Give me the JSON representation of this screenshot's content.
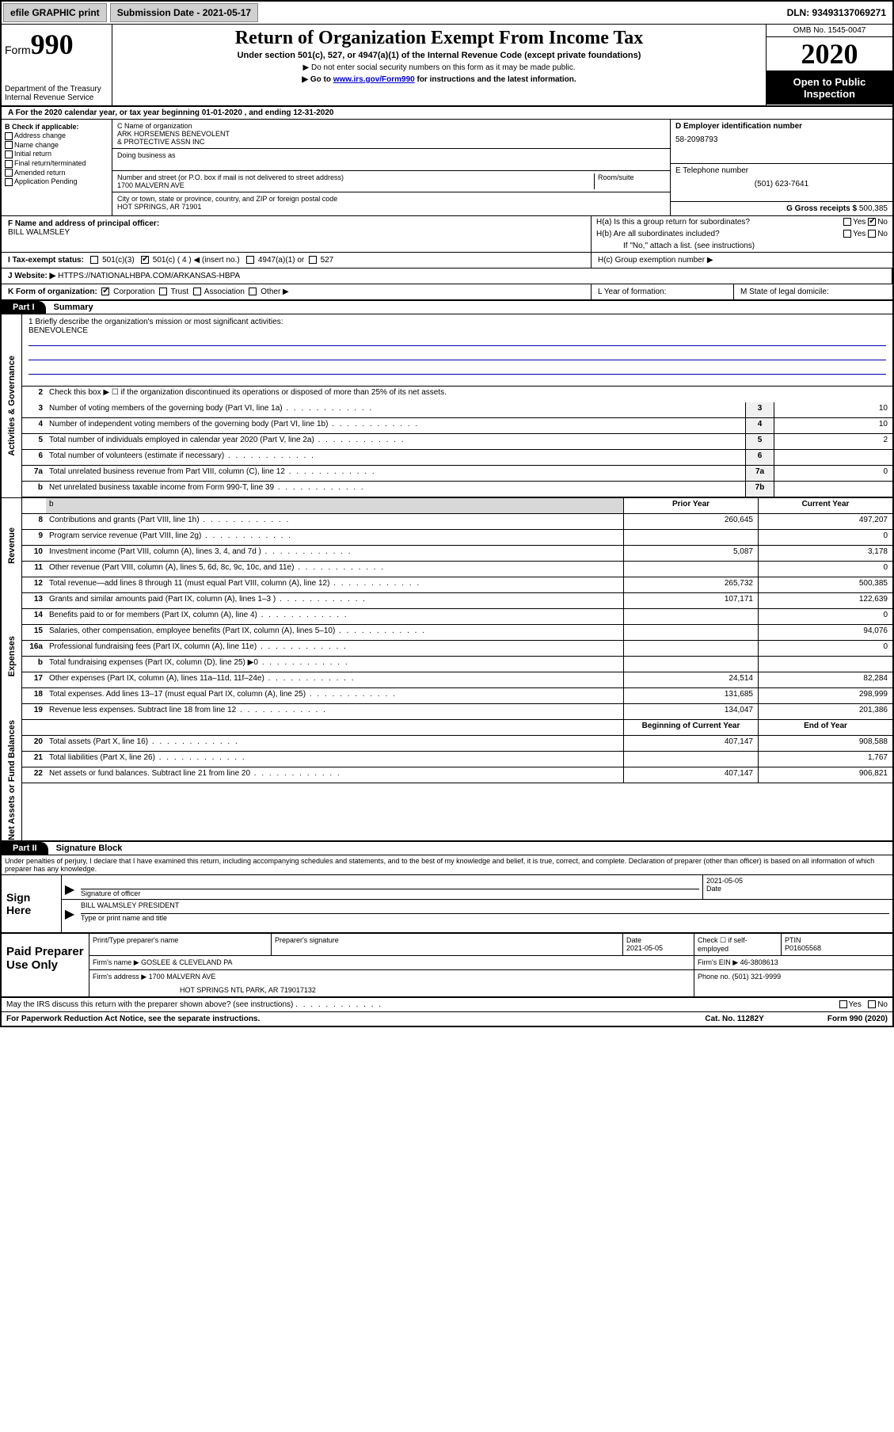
{
  "topbar": {
    "efile": "efile GRAPHIC print",
    "submission_label": "Submission Date - 2021-05-17",
    "dln": "DLN: 93493137069271"
  },
  "header": {
    "form_prefix": "Form",
    "form_number": "990",
    "title": "Return of Organization Exempt From Income Tax",
    "subtitle": "Under section 501(c), 527, or 4947(a)(1) of the Internal Revenue Code (except private foundations)",
    "note1": "▶ Do not enter social security numbers on this form as it may be made public.",
    "note2_prefix": "▶ Go to ",
    "note2_link": "www.irs.gov/Form990",
    "note2_suffix": " for instructions and the latest information.",
    "dept": "Department of the Treasury\nInternal Revenue Service",
    "omb": "OMB No. 1545-0047",
    "year": "2020",
    "open_public": "Open to Public Inspection"
  },
  "line_a": "A For the 2020 calendar year, or tax year beginning 01-01-2020    , and ending 12-31-2020",
  "section_b": {
    "label": "B Check if applicable:",
    "items": [
      "Address change",
      "Name change",
      "Initial return",
      "Final return/terminated",
      "Amended return",
      "Application Pending"
    ]
  },
  "section_c": {
    "name_label": "C Name of organization",
    "name": "ARK HORSEMENS BENEVOLENT\n& PROTECTIVE ASSN INC",
    "dba_label": "Doing business as",
    "street_label": "Number and street (or P.O. box if mail is not delivered to street address)",
    "room_label": "Room/suite",
    "street": "1700 MALVERN AVE",
    "city_label": "City or town, state or province, country, and ZIP or foreign postal code",
    "city": "HOT SPRINGS, AR  71901"
  },
  "section_d": {
    "label": "D Employer identification number",
    "value": "58-2098793"
  },
  "section_e": {
    "label": "E Telephone number",
    "value": "(501) 623-7641"
  },
  "section_g": {
    "label": "G Gross receipts $",
    "value": "500,385"
  },
  "section_f": {
    "label": "F  Name and address of principal officer:",
    "value": "BILL WALMSLEY"
  },
  "section_h": {
    "a": "H(a)  Is this a group return for subordinates?",
    "a_yes": "Yes",
    "a_no": "No",
    "b": "H(b)  Are all subordinates included?",
    "b_yes": "Yes",
    "b_no": "No",
    "b_note": "If \"No,\" attach a list. (see instructions)",
    "c": "H(c)  Group exemption number ▶"
  },
  "section_i": {
    "label": "I    Tax-exempt status:",
    "opt1": "501(c)(3)",
    "opt2": "501(c) ( 4 ) ◀ (insert no.)",
    "opt3": "4947(a)(1) or",
    "opt4": "527"
  },
  "section_j": {
    "label": "J    Website: ▶",
    "value": "HTTPS://NATIONALHBPA.COM/ARKANSAS-HBPA"
  },
  "section_k": {
    "label": "K Form of organization:",
    "opts": [
      "Corporation",
      "Trust",
      "Association",
      "Other ▶"
    ]
  },
  "section_l": "L Year of formation:",
  "section_m": "M State of legal domicile:",
  "part1": {
    "header": "Part I",
    "title": "Summary",
    "vert_gov": "Activities & Governance",
    "vert_rev": "Revenue",
    "vert_exp": "Expenses",
    "vert_net": "Net Assets or Fund Balances",
    "line1_label": "1   Briefly describe the organization's mission or most significant activities:",
    "line1_value": "BENEVOLENCE",
    "line2": "Check this box ▶ ☐  if the organization discontinued its operations or disposed of more than 25% of its net assets.",
    "lines_gov": [
      {
        "n": "3",
        "desc": "Number of voting members of the governing body (Part VI, line 1a)",
        "box": "3",
        "val": "10"
      },
      {
        "n": "4",
        "desc": "Number of independent voting members of the governing body (Part VI, line 1b)",
        "box": "4",
        "val": "10"
      },
      {
        "n": "5",
        "desc": "Total number of individuals employed in calendar year 2020 (Part V, line 2a)",
        "box": "5",
        "val": "2"
      },
      {
        "n": "6",
        "desc": "Total number of volunteers (estimate if necessary)",
        "box": "6",
        "val": ""
      },
      {
        "n": "7a",
        "desc": "Total unrelated business revenue from Part VIII, column (C), line 12",
        "box": "7a",
        "val": "0"
      },
      {
        "n": "b",
        "desc": "Net unrelated business taxable income from Form 990-T, line 39",
        "box": "7b",
        "val": ""
      }
    ],
    "prior_label": "Prior Year",
    "current_label": "Current Year",
    "lines_rev": [
      {
        "n": "8",
        "desc": "Contributions and grants (Part VIII, line 1h)",
        "prior": "260,645",
        "current": "497,207"
      },
      {
        "n": "9",
        "desc": "Program service revenue (Part VIII, line 2g)",
        "prior": "",
        "current": "0"
      },
      {
        "n": "10",
        "desc": "Investment income (Part VIII, column (A), lines 3, 4, and 7d )",
        "prior": "5,087",
        "current": "3,178"
      },
      {
        "n": "11",
        "desc": "Other revenue (Part VIII, column (A), lines 5, 6d, 8c, 9c, 10c, and 11e)",
        "prior": "",
        "current": "0"
      },
      {
        "n": "12",
        "desc": "Total revenue—add lines 8 through 11 (must equal Part VIII, column (A), line 12)",
        "prior": "265,732",
        "current": "500,385"
      }
    ],
    "lines_exp": [
      {
        "n": "13",
        "desc": "Grants and similar amounts paid (Part IX, column (A), lines 1–3 )",
        "prior": "107,171",
        "current": "122,639"
      },
      {
        "n": "14",
        "desc": "Benefits paid to or for members (Part IX, column (A), line 4)",
        "prior": "",
        "current": "0"
      },
      {
        "n": "15",
        "desc": "Salaries, other compensation, employee benefits (Part IX, column (A), lines 5–10)",
        "prior": "",
        "current": "94,076"
      },
      {
        "n": "16a",
        "desc": "Professional fundraising fees (Part IX, column (A), line 11e)",
        "prior": "",
        "current": "0"
      },
      {
        "n": "b",
        "desc": "Total fundraising expenses (Part IX, column (D), line 25) ▶0",
        "prior": "shaded",
        "current": "shaded"
      },
      {
        "n": "17",
        "desc": "Other expenses (Part IX, column (A), lines 11a–11d, 11f–24e)",
        "prior": "24,514",
        "current": "82,284"
      },
      {
        "n": "18",
        "desc": "Total expenses. Add lines 13–17 (must equal Part IX, column (A), line 25)",
        "prior": "131,685",
        "current": "298,999"
      },
      {
        "n": "19",
        "desc": "Revenue less expenses. Subtract line 18 from line 12",
        "prior": "134,047",
        "current": "201,386"
      }
    ],
    "begin_label": "Beginning of Current Year",
    "end_label": "End of Year",
    "lines_net": [
      {
        "n": "20",
        "desc": "Total assets (Part X, line 16)",
        "prior": "407,147",
        "current": "908,588"
      },
      {
        "n": "21",
        "desc": "Total liabilities (Part X, line 26)",
        "prior": "",
        "current": "1,767"
      },
      {
        "n": "22",
        "desc": "Net assets or fund balances. Subtract line 21 from line 20",
        "prior": "407,147",
        "current": "906,821"
      }
    ]
  },
  "part2": {
    "header": "Part II",
    "title": "Signature Block",
    "declaration": "Under penalties of perjury, I declare that I have examined this return, including accompanying schedules and statements, and to the best of my knowledge and belief, it is true, correct, and complete. Declaration of preparer (other than officer) is based on all information of which preparer has any knowledge.",
    "sign_here": "Sign Here",
    "sig_officer_label": "Signature of officer",
    "sig_date_label": "Date",
    "sig_date": "2021-05-05",
    "name_title": "BILL WALMSLEY PRESIDENT",
    "name_title_label": "Type or print name and title",
    "paid_prep": "Paid Preparer Use Only",
    "prep_name_label": "Print/Type preparer's name",
    "prep_sig_label": "Preparer's signature",
    "prep_date_label": "Date",
    "prep_date": "2021-05-05",
    "prep_check_label": "Check ☐ if self-employed",
    "ptin_label": "PTIN",
    "ptin": "P01605568",
    "firm_name_label": "Firm's name      ▶",
    "firm_name": "GOSLEE & CLEVELAND PA",
    "firm_ein_label": "Firm's EIN ▶",
    "firm_ein": "46-3808613",
    "firm_addr_label": "Firm's address ▶",
    "firm_addr1": "1700 MALVERN AVE",
    "firm_addr2": "HOT SPRINGS NTL PARK, AR  719017132",
    "phone_label": "Phone no.",
    "phone": "(501) 321-9999",
    "discuss": "May the IRS discuss this return with the preparer shown above? (see instructions)",
    "discuss_yes": "Yes",
    "discuss_no": "No"
  },
  "footer": {
    "paperwork": "For Paperwork Reduction Act Notice, see the separate instructions.",
    "catno": "Cat. No. 11282Y",
    "formno": "Form 990 (2020)"
  }
}
